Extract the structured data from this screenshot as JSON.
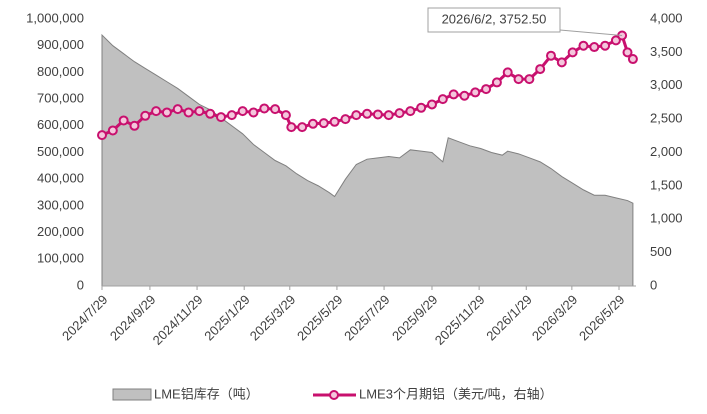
{
  "chart_data": {
    "type": "area-line",
    "xlim": [
      "2024/7/29",
      "2026/6/20"
    ],
    "xticks": [
      "2024/7/29",
      "2024/9/29",
      "2024/11/29",
      "2025/1/29",
      "2025/3/29",
      "2025/5/29",
      "2025/7/29",
      "2025/9/29",
      "2025/11/29",
      "2026/1/29",
      "2026/3/29",
      "2026/5/29"
    ],
    "ylim": [
      0,
      1000000
    ],
    "yticks": [
      0,
      {
        "value": 100000,
        "label": "100,000"
      },
      {
        "value": 200000,
        "label": "200,000"
      },
      {
        "value": 300000,
        "label": "300,000"
      },
      {
        "value": 400000,
        "label": "400,000"
      },
      {
        "value": 500000,
        "label": "500,000"
      },
      {
        "value": 600000,
        "label": "600,000"
      },
      {
        "value": 700000,
        "label": "700,000"
      },
      {
        "value": 800000,
        "label": "800,000"
      },
      {
        "value": 900000,
        "label": "900,000"
      },
      {
        "value": 1000000,
        "label": "1,000,000"
      }
    ],
    "y2lim": [
      0,
      4000
    ],
    "y2ticks": [
      0,
      500,
      {
        "value": 1000,
        "label": "1,000"
      },
      {
        "value": 1500,
        "label": "1,500"
      },
      {
        "value": 2000,
        "label": "2,000"
      },
      {
        "value": 2500,
        "label": "2,500"
      },
      {
        "value": 3000,
        "label": "3,000"
      },
      {
        "value": 3500,
        "label": "3,500"
      },
      {
        "value": 4000,
        "label": "4,000"
      }
    ],
    "series": [
      {
        "name": "LME铝库存（吨）",
        "type": "area",
        "color": "#c0c0c0",
        "axis": "y",
        "x": [
          "2024/7/29",
          "2024/8/12",
          "2024/8/26",
          "2024/9/9",
          "2024/9/23",
          "2024/10/7",
          "2024/10/21",
          "2024/11/4",
          "2024/11/18",
          "2024/12/2",
          "2024/12/16",
          "2024/12/30",
          "2025/1/13",
          "2025/1/27",
          "2025/2/10",
          "2025/2/24",
          "2025/3/10",
          "2025/3/24",
          "2025/4/7",
          "2025/4/21",
          "2025/5/5",
          "2025/5/19",
          "2025/5/26",
          "2025/6/9",
          "2025/6/23",
          "2025/7/7",
          "2025/7/21",
          "2025/8/4",
          "2025/8/18",
          "2025/9/1",
          "2025/9/15",
          "2025/9/29",
          "2025/10/13",
          "2025/10/20",
          "2025/11/3",
          "2025/11/17",
          "2025/12/1",
          "2025/12/15",
          "2025/12/29",
          "2026/1/5",
          "2026/1/19",
          "2026/2/2",
          "2026/2/16",
          "2026/3/2",
          "2026/3/16",
          "2026/3/30",
          "2026/4/13",
          "2026/4/27",
          "2026/5/11",
          "2026/5/25",
          "2026/6/9",
          "2026/6/16"
        ],
        "values": [
          940000,
          900000,
          870000,
          840000,
          815000,
          790000,
          765000,
          740000,
          710000,
          680000,
          660000,
          630000,
          600000,
          570000,
          530000,
          500000,
          470000,
          450000,
          420000,
          395000,
          375000,
          350000,
          335000,
          400000,
          455000,
          475000,
          480000,
          485000,
          480000,
          510000,
          505000,
          500000,
          465000,
          555000,
          540000,
          525000,
          515000,
          500000,
          490000,
          505000,
          495000,
          480000,
          465000,
          440000,
          410000,
          385000,
          360000,
          340000,
          340000,
          330000,
          320000,
          310000
        ]
      },
      {
        "name": "LME3个月期铝（美元/吨，右轴）",
        "type": "line",
        "color": "#c8106e",
        "axis": "y2",
        "x": [
          "2024/7/29",
          "2024/8/12",
          "2024/8/26",
          "2024/9/9",
          "2024/9/23",
          "2024/10/7",
          "2024/10/21",
          "2024/11/4",
          "2024/11/18",
          "2024/12/2",
          "2024/12/16",
          "2024/12/30",
          "2025/1/13",
          "2025/1/27",
          "2025/2/10",
          "2025/2/24",
          "2025/3/10",
          "2025/3/24",
          "2025/3/31",
          "2025/4/14",
          "2025/4/28",
          "2025/5/12",
          "2025/5/26",
          "2025/6/9",
          "2025/6/23",
          "2025/7/7",
          "2025/7/21",
          "2025/8/4",
          "2025/8/18",
          "2025/9/1",
          "2025/9/15",
          "2025/9/29",
          "2025/10/13",
          "2025/10/27",
          "2025/11/10",
          "2025/11/24",
          "2025/12/8",
          "2025/12/22",
          "2026/1/5",
          "2026/1/19",
          "2026/2/2",
          "2026/2/16",
          "2026/3/2",
          "2026/3/16",
          "2026/3/30",
          "2026/4/13",
          "2026/4/27",
          "2026/5/11",
          "2026/5/25",
          "2026/6/2",
          "2026/6/9",
          "2026/6/16"
        ],
        "values": [
          2260,
          2330,
          2480,
          2400,
          2550,
          2620,
          2600,
          2650,
          2600,
          2620,
          2580,
          2530,
          2560,
          2620,
          2600,
          2660,
          2650,
          2560,
          2380,
          2380,
          2430,
          2440,
          2460,
          2500,
          2560,
          2580,
          2570,
          2560,
          2590,
          2620,
          2670,
          2720,
          2800,
          2870,
          2850,
          2900,
          2950,
          3050,
          3200,
          3100,
          3100,
          3250,
          3450,
          3350,
          3500,
          3600,
          3580,
          3600,
          3680,
          3752.5,
          3500,
          3400
        ]
      }
    ],
    "annotation": {
      "text": "2026/6/2, 3752.50",
      "x": "2026/6/2",
      "value": 3752.5
    }
  }
}
